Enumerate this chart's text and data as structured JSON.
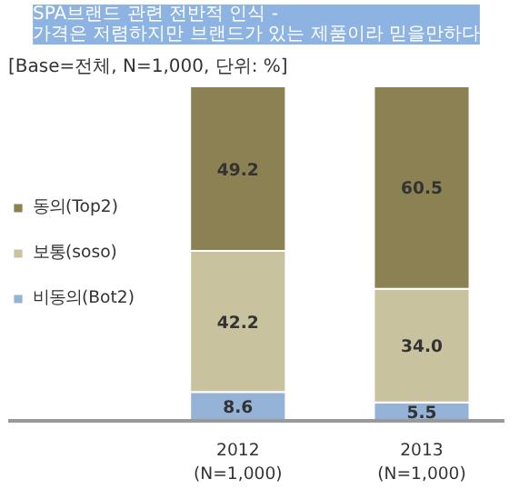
{
  "chart_data": {
    "type": "bar",
    "stacked": true,
    "title": "SPA브랜드 관련 전반적 인식 -\n가격은 저렴하지만 브랜드가 있는 제품이라 믿을만하다",
    "subtitle": "[Base=전체, N=1,000, 단위: %]",
    "categories": [
      "2012\n(N=1,000)",
      "2013\n(N=1,000)"
    ],
    "series": [
      {
        "name": "비동의(Bot2)",
        "color": "#95b3d7",
        "values": [
          8.6,
          5.5
        ],
        "value_labels": [
          "8.6",
          "5.5"
        ]
      },
      {
        "name": "보통(soso)",
        "color": "#c9c29f",
        "values": [
          42.2,
          34.0
        ],
        "value_labels": [
          "42.2",
          "34.0"
        ]
      },
      {
        "name": "동의(Top2)",
        "color": "#8b8152",
        "values": [
          49.2,
          60.5
        ],
        "value_labels": [
          "49.2",
          "60.5"
        ]
      }
    ],
    "legend": "left"
  }
}
